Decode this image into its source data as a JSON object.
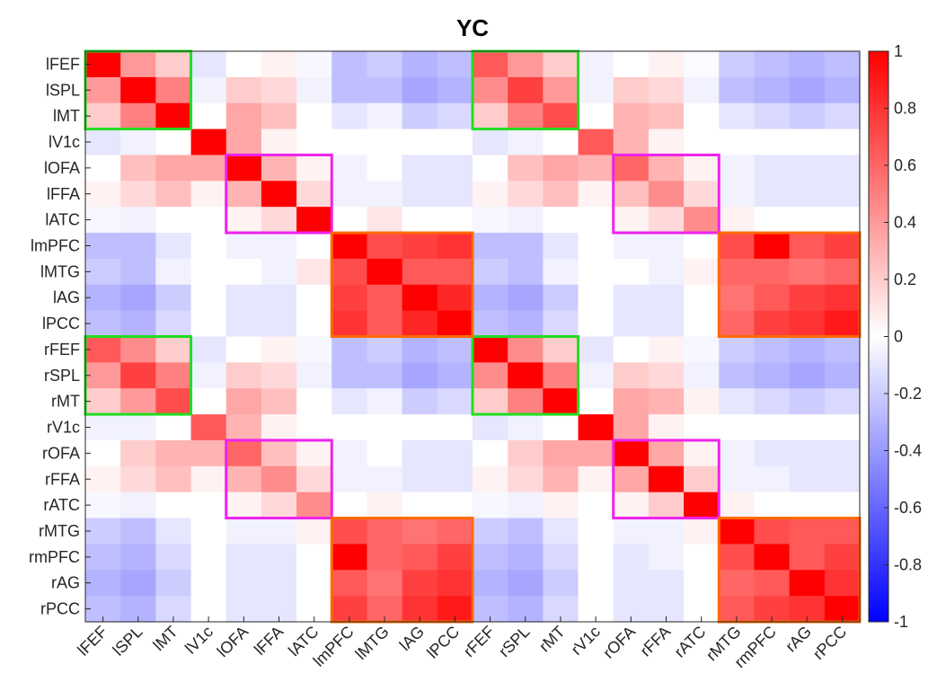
{
  "chart_data": {
    "type": "heatmap",
    "title": "YC",
    "labels": [
      "lFEF",
      "lSPL",
      "lMT",
      "lV1c",
      "lOFA",
      "lFFA",
      "lATC",
      "lmPFC",
      "lMTG",
      "lAG",
      "lPCC",
      "rFEF",
      "rSPL",
      "rMT",
      "rV1c",
      "rOFA",
      "rFFA",
      "rATC",
      "rMTG",
      "rmPFC",
      "rAG",
      "rPCC"
    ],
    "colorbar": {
      "min": -1,
      "max": 1,
      "ticks": [
        1,
        0.8,
        0.6,
        0.4,
        0.2,
        0,
        -0.2,
        -0.4,
        -0.6,
        -0.8,
        -1
      ],
      "tick_labels": [
        "1",
        "0.8",
        "0.6",
        "0.4",
        "0.2",
        "0",
        "-0.2",
        "-0.4",
        "-0.6",
        "-0.8",
        "-1"
      ]
    },
    "matrix": [
      [
        1.0,
        0.4,
        0.2,
        -0.1,
        0.0,
        0.05,
        -0.03,
        -0.25,
        -0.2,
        -0.3,
        -0.25,
        0.65,
        0.4,
        0.2,
        -0.05,
        0.0,
        0.05,
        -0.02,
        -0.2,
        -0.25,
        -0.3,
        -0.25
      ],
      [
        0.4,
        1.0,
        0.5,
        -0.05,
        0.2,
        0.15,
        -0.05,
        -0.25,
        -0.25,
        -0.35,
        -0.3,
        0.45,
        0.75,
        0.4,
        -0.05,
        0.2,
        0.15,
        -0.05,
        -0.25,
        -0.3,
        -0.35,
        -0.3
      ],
      [
        0.2,
        0.5,
        1.0,
        0.0,
        0.35,
        0.25,
        0.0,
        -0.1,
        -0.05,
        -0.2,
        -0.15,
        0.2,
        0.5,
        0.7,
        0.0,
        0.3,
        0.25,
        0.0,
        -0.1,
        -0.15,
        -0.2,
        -0.15
      ],
      [
        -0.1,
        -0.05,
        0.0,
        1.0,
        0.35,
        0.05,
        0.0,
        0.0,
        0.0,
        0.0,
        0.0,
        -0.1,
        -0.05,
        0.0,
        0.65,
        0.3,
        0.05,
        0.0,
        0.0,
        0.0,
        0.0,
        0.0
      ],
      [
        0.0,
        0.25,
        0.35,
        0.35,
        1.0,
        0.3,
        0.05,
        -0.05,
        0.0,
        -0.1,
        -0.1,
        0.0,
        0.25,
        0.35,
        0.3,
        0.6,
        0.3,
        0.05,
        -0.05,
        -0.1,
        -0.1,
        -0.1
      ],
      [
        0.05,
        0.15,
        0.25,
        0.05,
        0.3,
        1.0,
        0.15,
        -0.05,
        -0.05,
        -0.1,
        -0.1,
        0.05,
        0.15,
        0.25,
        0.05,
        0.25,
        0.45,
        0.15,
        -0.05,
        -0.1,
        -0.1,
        -0.1
      ],
      [
        -0.03,
        -0.05,
        0.0,
        0.0,
        0.05,
        0.15,
        1.0,
        0.0,
        0.1,
        0.0,
        0.0,
        -0.03,
        -0.05,
        0.0,
        0.0,
        0.05,
        0.15,
        0.45,
        0.05,
        0.0,
        0.0,
        0.0
      ],
      [
        -0.25,
        -0.25,
        -0.1,
        0.0,
        -0.05,
        -0.05,
        0.0,
        1.0,
        0.7,
        0.75,
        0.8,
        -0.25,
        -0.25,
        -0.1,
        0.0,
        -0.05,
        -0.05,
        0.0,
        0.7,
        1.0,
        0.65,
        0.75
      ],
      [
        -0.2,
        -0.25,
        -0.05,
        0.0,
        0.0,
        -0.05,
        0.1,
        0.7,
        1.0,
        0.65,
        0.65,
        -0.2,
        -0.25,
        -0.05,
        0.0,
        0.0,
        -0.05,
        0.05,
        0.6,
        0.6,
        0.55,
        0.6
      ],
      [
        -0.3,
        -0.35,
        -0.2,
        0.0,
        -0.1,
        -0.1,
        0.0,
        0.75,
        0.65,
        1.0,
        0.85,
        -0.3,
        -0.35,
        -0.2,
        0.0,
        -0.1,
        -0.1,
        0.0,
        0.55,
        0.65,
        0.75,
        0.8
      ],
      [
        -0.25,
        -0.3,
        -0.15,
        0.0,
        -0.1,
        -0.1,
        0.0,
        0.8,
        0.65,
        0.85,
        1.0,
        -0.25,
        -0.3,
        -0.15,
        0.0,
        -0.1,
        -0.1,
        0.0,
        0.6,
        0.75,
        0.8,
        0.9
      ],
      [
        0.65,
        0.45,
        0.2,
        -0.1,
        0.0,
        0.05,
        -0.03,
        -0.25,
        -0.2,
        -0.3,
        -0.25,
        1.0,
        0.45,
        0.2,
        -0.1,
        0.0,
        0.05,
        -0.03,
        -0.2,
        -0.25,
        -0.3,
        -0.25
      ],
      [
        0.4,
        0.75,
        0.5,
        -0.05,
        0.2,
        0.15,
        -0.05,
        -0.25,
        -0.25,
        -0.35,
        -0.3,
        0.45,
        1.0,
        0.5,
        -0.05,
        0.2,
        0.15,
        -0.05,
        -0.25,
        -0.3,
        -0.35,
        -0.3
      ],
      [
        0.2,
        0.4,
        0.7,
        0.0,
        0.35,
        0.25,
        0.0,
        -0.1,
        -0.05,
        -0.2,
        -0.15,
        0.2,
        0.5,
        1.0,
        0.0,
        0.35,
        0.3,
        0.05,
        -0.1,
        -0.15,
        -0.2,
        -0.15
      ],
      [
        -0.05,
        -0.05,
        0.0,
        0.65,
        0.3,
        0.05,
        0.0,
        0.0,
        0.0,
        0.0,
        0.0,
        -0.1,
        -0.05,
        0.0,
        1.0,
        0.35,
        0.05,
        0.0,
        0.0,
        0.0,
        0.0,
        0.0
      ],
      [
        0.0,
        0.2,
        0.3,
        0.3,
        0.6,
        0.25,
        0.05,
        -0.05,
        0.0,
        -0.1,
        -0.1,
        0.0,
        0.2,
        0.35,
        0.35,
        1.0,
        0.35,
        0.05,
        -0.05,
        -0.1,
        -0.1,
        -0.1
      ],
      [
        0.05,
        0.15,
        0.25,
        0.05,
        0.3,
        0.45,
        0.15,
        -0.05,
        -0.05,
        -0.1,
        -0.1,
        0.05,
        0.15,
        0.3,
        0.05,
        0.35,
        1.0,
        0.2,
        -0.05,
        -0.05,
        -0.1,
        -0.1
      ],
      [
        -0.03,
        -0.05,
        0.0,
        0.0,
        0.05,
        0.15,
        0.45,
        0.0,
        0.05,
        0.0,
        0.0,
        -0.03,
        -0.05,
        0.05,
        0.0,
        0.05,
        0.2,
        1.0,
        0.05,
        0.0,
        0.0,
        0.0
      ],
      [
        -0.2,
        -0.25,
        -0.1,
        0.0,
        -0.05,
        -0.05,
        0.05,
        0.7,
        0.6,
        0.55,
        0.6,
        -0.2,
        -0.25,
        -0.1,
        0.0,
        -0.05,
        -0.05,
        0.05,
        1.0,
        0.7,
        0.65,
        0.65
      ],
      [
        -0.25,
        -0.3,
        -0.15,
        0.0,
        -0.1,
        -0.1,
        0.0,
        1.0,
        0.6,
        0.65,
        0.75,
        -0.25,
        -0.3,
        -0.15,
        0.0,
        -0.1,
        -0.05,
        0.0,
        0.7,
        1.0,
        0.65,
        0.75
      ],
      [
        -0.3,
        -0.35,
        -0.2,
        0.0,
        -0.1,
        -0.1,
        0.0,
        0.65,
        0.55,
        0.75,
        0.8,
        -0.3,
        -0.35,
        -0.2,
        0.0,
        -0.1,
        -0.1,
        0.0,
        0.6,
        0.65,
        1.0,
        0.8
      ],
      [
        -0.25,
        -0.3,
        -0.15,
        0.0,
        -0.1,
        -0.1,
        0.0,
        0.75,
        0.6,
        0.8,
        0.9,
        -0.25,
        -0.3,
        -0.15,
        0.0,
        -0.1,
        -0.1,
        0.0,
        0.65,
        0.75,
        0.8,
        1.0
      ]
    ],
    "highlight_boxes": [
      {
        "rows": [
          0,
          2
        ],
        "cols": [
          0,
          2
        ],
        "color": "#22dd22"
      },
      {
        "rows": [
          0,
          2
        ],
        "cols": [
          11,
          13
        ],
        "color": "#22dd22"
      },
      {
        "rows": [
          11,
          13
        ],
        "cols": [
          0,
          2
        ],
        "color": "#22dd22"
      },
      {
        "rows": [
          11,
          13
        ],
        "cols": [
          11,
          13
        ],
        "color": "#22dd22"
      },
      {
        "rows": [
          4,
          6
        ],
        "cols": [
          4,
          6
        ],
        "color": "#ee22ee"
      },
      {
        "rows": [
          4,
          6
        ],
        "cols": [
          15,
          17
        ],
        "color": "#ee22ee"
      },
      {
        "rows": [
          15,
          17
        ],
        "cols": [
          4,
          6
        ],
        "color": "#ee22ee"
      },
      {
        "rows": [
          15,
          17
        ],
        "cols": [
          15,
          17
        ],
        "color": "#ee22ee"
      },
      {
        "rows": [
          7,
          10
        ],
        "cols": [
          7,
          10
        ],
        "color": "#ff6a00"
      },
      {
        "rows": [
          7,
          10
        ],
        "cols": [
          18,
          21
        ],
        "color": "#ff6a00"
      },
      {
        "rows": [
          18,
          21
        ],
        "cols": [
          7,
          10
        ],
        "color": "#ff6a00"
      },
      {
        "rows": [
          18,
          21
        ],
        "cols": [
          18,
          21
        ],
        "color": "#ff6a00"
      }
    ],
    "colors": {
      "positive": "#ff0000",
      "negative": "#0000ff",
      "zero": "#ffffff"
    }
  }
}
